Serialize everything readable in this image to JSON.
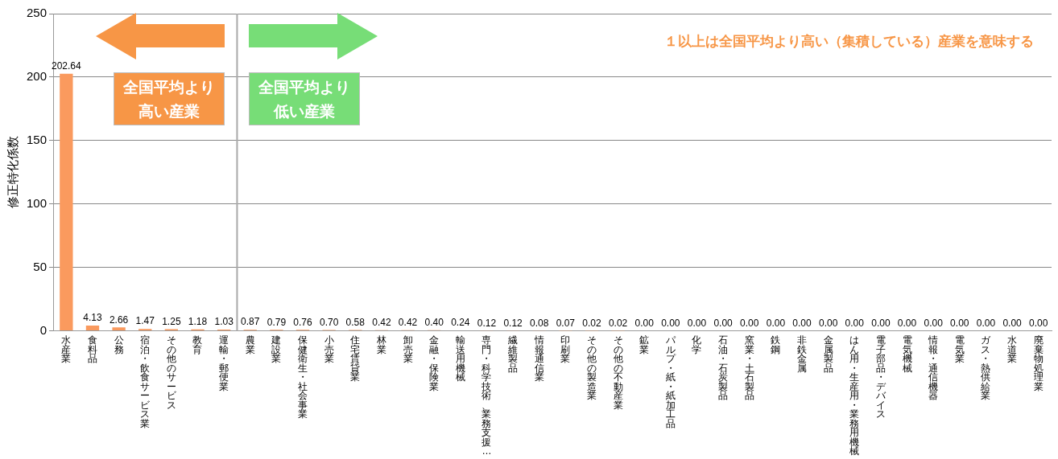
{
  "chart_data": {
    "type": "bar",
    "ylabel": "修正特化係数",
    "categories": [
      "水産業",
      "食料品",
      "公務",
      "宿泊・飲食サービス業",
      "その他のサービス",
      "教育",
      "運輸・郵便業",
      "農業",
      "建設業",
      "保健衛生・社会事業",
      "小売業",
      "住宅賃貸業",
      "林業",
      "卸売業",
      "金融・保険業",
      "輸送用機械",
      "専門・科学技術、業務支援…",
      "繊維製品",
      "情報通信業",
      "印刷業",
      "その他の製造業",
      "その他の不動産業",
      "鉱業",
      "パルプ・紙・紙加工品",
      "化学",
      "石油・石炭製品",
      "窯業・土石製品",
      "鉄鋼",
      "非鉄金属",
      "金属製品",
      "はん用・生産用・業務用機械",
      "電子部品・デバイス",
      "電気機械",
      "情報・通信機器",
      "電気業",
      "ガス・熱供給業",
      "水道業",
      "廃棄物処理業"
    ],
    "values": [
      202.64,
      4.13,
      2.66,
      1.47,
      1.25,
      1.18,
      1.03,
      0.87,
      0.79,
      0.76,
      0.7,
      0.58,
      0.42,
      0.42,
      0.4,
      0.24,
      0.12,
      0.12,
      0.08,
      0.07,
      0.02,
      0.02,
      0,
      0,
      0,
      0,
      0,
      0,
      0,
      0,
      0,
      0,
      0,
      0,
      0,
      0,
      0,
      0
    ],
    "value_labels": [
      "202.64",
      "4.13",
      "2.66",
      "1.47",
      "1.25",
      "1.18",
      "1.03",
      "0.87",
      "0.79",
      "0.76",
      "0.70",
      "0.58",
      "0.42",
      "0.42",
      "0.40",
      "0.24",
      "0.12",
      "0.12",
      "0.08",
      "0.07",
      "0.02",
      "0.02",
      "0.00",
      "0.00",
      "0.00",
      "0.00",
      "0.00",
      "0.00",
      "0.00",
      "0.00",
      "0.00",
      "0.00",
      "0.00",
      "0.00",
      "0.00",
      "0.00",
      "0.00",
      "0.00"
    ],
    "color": "#fa9a5e",
    "ylim": [
      0,
      250
    ],
    "yticks": [
      0,
      50,
      100,
      150,
      200,
      250
    ],
    "grid": "y",
    "legend": false,
    "ref_lines": [
      {
        "axis": "x",
        "value": "農業",
        "color": "#aaaaaa"
      }
    ],
    "annotations": [
      "１以上は全国平均より高い（集積している）産業を意味する",
      "全国平均より高い産業",
      "全国平均より低い産業"
    ]
  }
}
